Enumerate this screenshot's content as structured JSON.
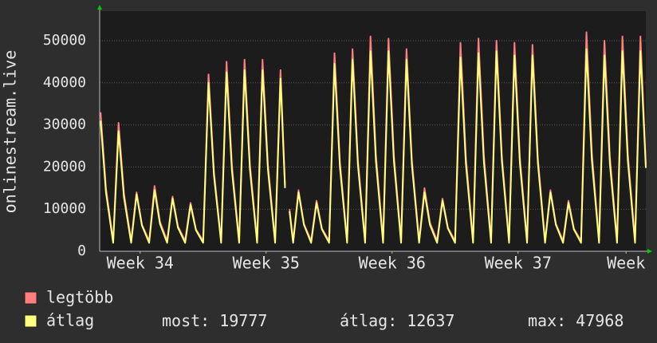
{
  "chart_data": {
    "type": "line",
    "ylabel": "onlinestream.live",
    "x": [
      0,
      0.3,
      0.7,
      1,
      1.3,
      1.7,
      2,
      2.3,
      2.7,
      3,
      3.3,
      3.7,
      4,
      4.3,
      4.7,
      5,
      5.3,
      5.7,
      6,
      6.3,
      6.7,
      7,
      7.3,
      7.7,
      8,
      8.3,
      8.7,
      9,
      9.3,
      9.7,
      10,
      10.25,
      10.4,
      10.5,
      10.7,
      11,
      11.3,
      11.7,
      12,
      12.3,
      12.7,
      13,
      13.3,
      13.7,
      14,
      14.3,
      14.7,
      15,
      15.3,
      15.7,
      16,
      16.3,
      16.7,
      17,
      17.3,
      17.7,
      18,
      18.3,
      18.7,
      19,
      19.3,
      19.7,
      20,
      20.3,
      20.7,
      21,
      21.3,
      21.7,
      22,
      22.3,
      22.7,
      23,
      23.3,
      23.7,
      24,
      24.3,
      24.7,
      25,
      25.3,
      25.7,
      26,
      26.3,
      26.7,
      27,
      27.3,
      27.7,
      28,
      28.3,
      28.7,
      29,
      29.3,
      29.7,
      30,
      30.3
    ],
    "series": [
      {
        "name": "legtöbb",
        "color": "#ff7f7f",
        "values": [
          33000,
          14900,
          2500,
          30500,
          13700,
          2500,
          14000,
          6300,
          2500,
          15500,
          7000,
          2500,
          13000,
          5900,
          2500,
          11500,
          5200,
          2500,
          42000,
          18900,
          2500,
          45000,
          20300,
          2500,
          45500,
          20500,
          2500,
          45500,
          20500,
          2500,
          43000,
          15500,
          null,
          10000,
          2500,
          14500,
          6500,
          2500,
          12000,
          5400,
          2500,
          47000,
          21200,
          2500,
          48000,
          21600,
          2500,
          51000,
          23000,
          2500,
          50500,
          22700,
          2500,
          48000,
          21600,
          2500,
          15000,
          6800,
          2500,
          12500,
          5600,
          2500,
          49500,
          22300,
          2500,
          50500,
          22700,
          2500,
          50000,
          22500,
          2500,
          49500,
          22300,
          2500,
          49000,
          22100,
          2500,
          14500,
          6500,
          2500,
          12000,
          5400,
          2500,
          52000,
          23400,
          2500,
          50000,
          22500,
          2500,
          51000,
          23000,
          2500,
          51000,
          20500
        ]
      },
      {
        "name": "átlag",
        "color": "#ffff80",
        "values": [
          31000,
          14000,
          2000,
          28500,
          12800,
          2000,
          13500,
          6100,
          2000,
          14500,
          6500,
          2000,
          12500,
          5600,
          2000,
          11000,
          5000,
          2000,
          40000,
          18000,
          2000,
          42500,
          19100,
          2000,
          43000,
          19400,
          2000,
          43000,
          19400,
          2000,
          41000,
          15000,
          null,
          9500,
          2000,
          14000,
          6300,
          2000,
          11500,
          5200,
          2000,
          44500,
          20000,
          2000,
          45500,
          20500,
          2000,
          47500,
          21400,
          2000,
          47500,
          21400,
          2000,
          45500,
          20500,
          2000,
          14000,
          6300,
          2000,
          12000,
          5400,
          2000,
          46000,
          20700,
          2000,
          47000,
          21200,
          2000,
          47500,
          21400,
          2000,
          46500,
          20900,
          2000,
          46500,
          20900,
          2000,
          14000,
          6300,
          2000,
          11500,
          5200,
          2000,
          47968,
          21600,
          2000,
          46500,
          20900,
          2000,
          47500,
          21400,
          2000,
          47500,
          19777
        ]
      }
    ],
    "xlim": [
      -0.05,
      30.3
    ],
    "xticks": [
      {
        "value": 2.2,
        "label": "Week 34"
      },
      {
        "value": 9.2,
        "label": "Week 35"
      },
      {
        "value": 16.2,
        "label": "Week 36"
      },
      {
        "value": 23.2,
        "label": "Week 37"
      },
      {
        "value": 29.2,
        "label": "Week"
      }
    ],
    "ylim": [
      0,
      57000
    ],
    "yticks": [
      0,
      10000,
      20000,
      30000,
      40000,
      50000
    ],
    "grid": true,
    "stats": [
      {
        "label": "most:",
        "value": 19777
      },
      {
        "label": "átlag:",
        "value": 12637
      },
      {
        "label": "max:",
        "value": 47968
      }
    ]
  }
}
